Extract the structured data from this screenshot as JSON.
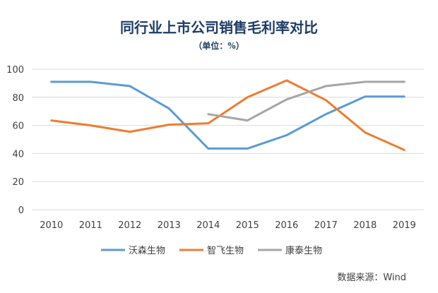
{
  "chart_data": {
    "type": "line",
    "title": "同行业上市公司销售毛利率对比",
    "subtitle": "（单位：%）",
    "categories": [
      "2010",
      "2011",
      "2012",
      "2013",
      "2014",
      "2015",
      "2016",
      "2017",
      "2018",
      "2019"
    ],
    "ylim": [
      0,
      100
    ],
    "yticks": [
      0,
      20,
      40,
      60,
      80,
      100
    ],
    "grid": true,
    "legend_position": "bottom",
    "series": [
      {
        "name": "沃森生物",
        "color": "#5b9bd5",
        "values": [
          91,
          91,
          88,
          72,
          43.5,
          43.5,
          53,
          68,
          80.5,
          80.5
        ]
      },
      {
        "name": "智飞生物",
        "color": "#ed7d31",
        "values": [
          63.5,
          60,
          55.5,
          60.5,
          61.5,
          80,
          92,
          78,
          55,
          42.5
        ]
      },
      {
        "name": "康泰生物",
        "color": "#a5a5a5",
        "values": [
          null,
          null,
          null,
          null,
          68,
          63.5,
          78.5,
          88,
          91,
          91
        ]
      }
    ],
    "source": "数据来源：Wind"
  }
}
